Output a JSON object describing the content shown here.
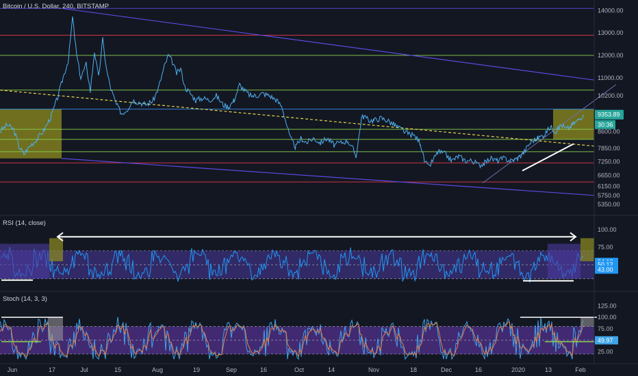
{
  "title": "Bitcoin / U.S. Dollar, 240, BITSTAMP",
  "colors": {
    "background": "#131722",
    "axis_bg": "#131722",
    "price": "#4fb1f3",
    "rsi": "#2196f3",
    "stoch_k": "#3fa4e8",
    "stoch_d": "#e2814a",
    "channel": "#5a4ae0",
    "red_level": "#e23b4a",
    "green_level": "#8bd24a",
    "blue_level": "#3a8ee6",
    "trend": "#e6d84a",
    "yellow_box": "#8f8e1f",
    "rsi_band": "#4b3a9e",
    "stoch_band": "#6a3ab5"
  },
  "chart_data": [
    {
      "type": "line",
      "name": "price",
      "title": "Bitcoin / U.S. Dollar, 240, BITSTAMP",
      "y_ticks": [
        "14000.00",
        "13000.00",
        "12000.00",
        "11000.00",
        "10200.00",
        "9353.89",
        "8600.00",
        "7850.00",
        "7250.00",
        "6650.00",
        "6150.00",
        "5750.00",
        "5350.00"
      ],
      "current_price_label": "9353.89",
      "countdown_label": "30:36",
      "horizontal_levels": [
        {
          "value": 14100,
          "color": "channel"
        },
        {
          "value": 12900,
          "color": "red_level"
        },
        {
          "value": 12000,
          "color": "green_level"
        },
        {
          "value": 10450,
          "color": "green_level"
        },
        {
          "value": 9600,
          "color": "blue_level"
        },
        {
          "value": 8700,
          "color": "green_level"
        },
        {
          "value": 8250,
          "color": "green_level"
        },
        {
          "value": 7700,
          "color": "green_level"
        },
        {
          "value": 7200,
          "color": "red_level"
        },
        {
          "value": 6350,
          "color": "red_level"
        }
      ],
      "ylim": [
        4950,
        14350
      ],
      "x_labels": [
        "Jun",
        "17",
        "Jul",
        "15",
        "Aug",
        "19",
        "Sep",
        "16",
        "Oct",
        "14",
        "Nov",
        "18",
        "Dec",
        "16",
        "2020",
        "13",
        "Feb"
      ],
      "series_points": [
        [
          0,
          8600
        ],
        [
          10,
          8900
        ],
        [
          20,
          8700
        ],
        [
          28,
          7900
        ],
        [
          35,
          7600
        ],
        [
          45,
          8000
        ],
        [
          55,
          8300
        ],
        [
          65,
          8700
        ],
        [
          75,
          9300
        ],
        [
          85,
          10200
        ],
        [
          92,
          11000
        ],
        [
          100,
          11800
        ],
        [
          106,
          13700
        ],
        [
          112,
          12000
        ],
        [
          118,
          11000
        ],
        [
          126,
          11600
        ],
        [
          132,
          10400
        ],
        [
          138,
          12200
        ],
        [
          144,
          11000
        ],
        [
          150,
          12700
        ],
        [
          156,
          11300
        ],
        [
          162,
          10500
        ],
        [
          170,
          9800
        ],
        [
          178,
          9400
        ],
        [
          186,
          9600
        ],
        [
          194,
          10000
        ],
        [
          204,
          9900
        ],
        [
          214,
          9800
        ],
        [
          224,
          10000
        ],
        [
          232,
          10600
        ],
        [
          240,
          11500
        ],
        [
          246,
          12000
        ],
        [
          252,
          11700
        ],
        [
          258,
          11200
        ],
        [
          264,
          11400
        ],
        [
          270,
          10600
        ],
        [
          278,
          10300
        ],
        [
          286,
          10000
        ],
        [
          296,
          10100
        ],
        [
          306,
          10000
        ],
        [
          316,
          10200
        ],
        [
          326,
          9800
        ],
        [
          334,
          9700
        ],
        [
          342,
          10000
        ],
        [
          350,
          10700
        ],
        [
          358,
          10400
        ],
        [
          366,
          10200
        ],
        [
          374,
          10200
        ],
        [
          384,
          10300
        ],
        [
          394,
          10200
        ],
        [
          404,
          10000
        ],
        [
          412,
          9700
        ],
        [
          418,
          9000
        ],
        [
          424,
          8300
        ],
        [
          432,
          7900
        ],
        [
          440,
          8300
        ],
        [
          448,
          8100
        ],
        [
          458,
          8300
        ],
        [
          468,
          8100
        ],
        [
          478,
          8300
        ],
        [
          488,
          8000
        ],
        [
          498,
          8100
        ],
        [
          508,
          8200
        ],
        [
          516,
          7800
        ],
        [
          520,
          7500
        ],
        [
          524,
          8300
        ],
        [
          528,
          9200
        ],
        [
          532,
          9300
        ],
        [
          538,
          9100
        ],
        [
          546,
          9100
        ],
        [
          556,
          9200
        ],
        [
          566,
          9100
        ],
        [
          576,
          8900
        ],
        [
          586,
          8700
        ],
        [
          596,
          8500
        ],
        [
          606,
          8400
        ],
        [
          614,
          8100
        ],
        [
          620,
          7300
        ],
        [
          626,
          7000
        ],
        [
          632,
          7300
        ],
        [
          640,
          7700
        ],
        [
          650,
          7600
        ],
        [
          660,
          7300
        ],
        [
          670,
          7500
        ],
        [
          680,
          7300
        ],
        [
          690,
          7300
        ],
        [
          700,
          7100
        ],
        [
          708,
          7200
        ],
        [
          716,
          7400
        ],
        [
          726,
          7300
        ],
        [
          736,
          7400
        ],
        [
          746,
          7300
        ],
        [
          756,
          7400
        ],
        [
          766,
          7700
        ],
        [
          772,
          8000
        ],
        [
          778,
          8200
        ],
        [
          786,
          8300
        ],
        [
          796,
          8500
        ],
        [
          804,
          8800
        ],
        [
          812,
          8600
        ],
        [
          820,
          8900
        ],
        [
          828,
          8700
        ],
        [
          836,
          8900
        ],
        [
          844,
          9100
        ],
        [
          852,
          9353
        ]
      ],
      "annotations": [
        "yellow rectangle Jun",
        "yellow rectangle late Jan",
        "descending channel",
        "dashed yellow trendline",
        "white support line"
      ]
    },
    {
      "type": "line",
      "name": "RSI",
      "title": "RSI (14, close)",
      "y_ticks": [
        "100.00",
        "75.00",
        "54.12",
        "50.12",
        "43.00"
      ],
      "tags": [
        {
          "value": 54.12
        },
        {
          "value": 50.12
        },
        {
          "value": 43.0
        }
      ],
      "band": [
        30,
        70
      ],
      "ylim": [
        18,
        106
      ],
      "series_seed": 7
    },
    {
      "type": "line",
      "name": "Stoch",
      "title": "Stoch (14, 3, 3)",
      "y_ticks": [
        "125.00",
        "100.00",
        "75.00",
        "49.97",
        "25.00"
      ],
      "tags": [
        {
          "value": 49.97
        }
      ],
      "band": [
        20,
        80
      ],
      "ylim": [
        5,
        130
      ],
      "series_seed": 13
    }
  ]
}
